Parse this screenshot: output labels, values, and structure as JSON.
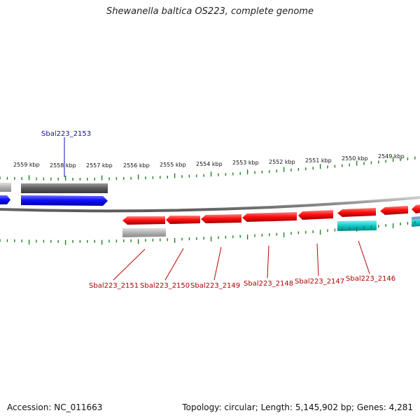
{
  "title": "Shewanella baltica OS223, complete genome",
  "footer": {
    "accession": "Accession: NC_011663",
    "summary": "Topology: circular; Length: 5,145,902 bp; Genes: 4,281"
  },
  "colors": {
    "forward_cds": "#1010ff",
    "reverse_cds": "#ff1010",
    "forward_gene": "#606060",
    "reverse_gene": "#b0b0b0",
    "rna": "#10c8c8",
    "backbone": "#8a8a8a",
    "ticks": "#208020",
    "forward_label": "#1010a0",
    "reverse_label": "#b00000"
  },
  "ruler": {
    "ticks": [
      {
        "label": "2559 kbp"
      },
      {
        "label": "2558 kbp"
      },
      {
        "label": "2557 kbp"
      },
      {
        "label": "2556 kbp"
      },
      {
        "label": "2555 kbp"
      },
      {
        "label": "2554 kbp"
      },
      {
        "label": "2553 kbp"
      },
      {
        "label": "2552 kbp"
      },
      {
        "label": "2551 kbp"
      },
      {
        "label": "2550 kbp"
      },
      {
        "label": "2549 kbp"
      }
    ]
  },
  "gene_labels": {
    "forward": [
      {
        "label": "Sbal223_2153"
      }
    ],
    "reverse": [
      {
        "label": "Sbal223_2151"
      },
      {
        "label": "Sbal223_2150"
      },
      {
        "label": "Sbal223_2149"
      },
      {
        "label": "Sbal223_2148"
      },
      {
        "label": "Sbal223_2147"
      },
      {
        "label": "Sbal223_2146"
      }
    ]
  }
}
